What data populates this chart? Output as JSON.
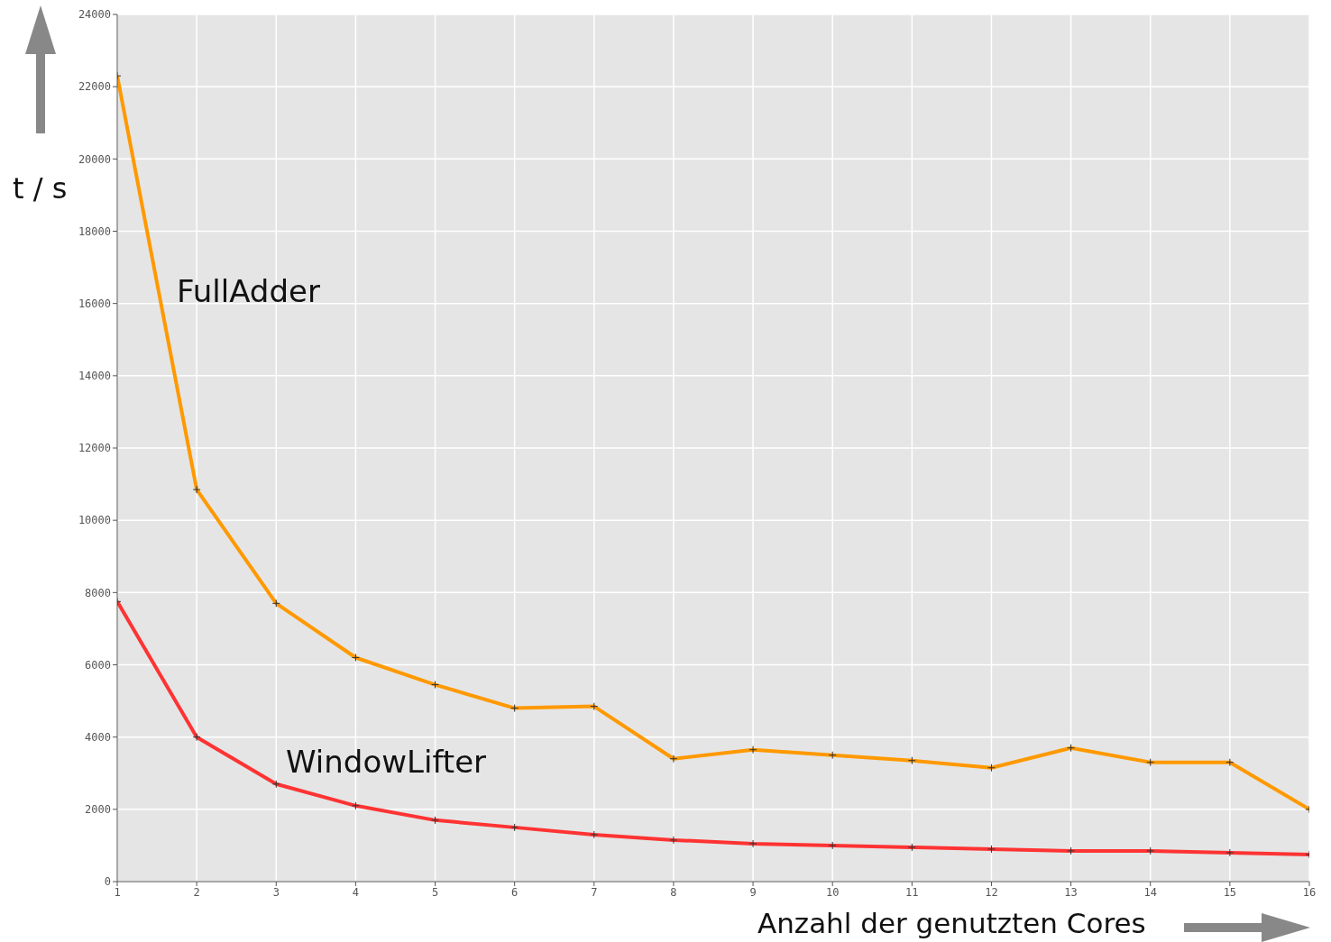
{
  "chart_data": {
    "type": "line",
    "xlabel": "Anzahl der genutzten Cores",
    "ylabel": "t / s",
    "x": [
      1,
      2,
      3,
      4,
      5,
      6,
      7,
      8,
      9,
      10,
      11,
      12,
      13,
      14,
      15,
      16
    ],
    "series": [
      {
        "name": "FullAdder",
        "color": "#ff9900",
        "values": [
          22300,
          10850,
          7700,
          6200,
          5450,
          4800,
          4850,
          3400,
          3650,
          3500,
          3350,
          3150,
          3700,
          3300,
          3300,
          2000
        ]
      },
      {
        "name": "WindowLifter",
        "color": "#ff3333",
        "values": [
          7750,
          4000,
          2700,
          2100,
          1700,
          1500,
          1300,
          1150,
          1050,
          1000,
          950,
          900,
          850,
          850,
          800,
          750
        ]
      }
    ],
    "xlim": [
      1,
      16
    ],
    "xticks": [
      1,
      2,
      3,
      4,
      5,
      6,
      7,
      8,
      9,
      10,
      11,
      12,
      13,
      14,
      15,
      16
    ],
    "ylim": [
      0,
      24000
    ],
    "yticks": [
      0,
      2000,
      4000,
      6000,
      8000,
      10000,
      12000,
      14000,
      16000,
      18000,
      20000,
      22000,
      24000
    ],
    "grid": true,
    "marker": "cross",
    "line_style": "solid"
  }
}
